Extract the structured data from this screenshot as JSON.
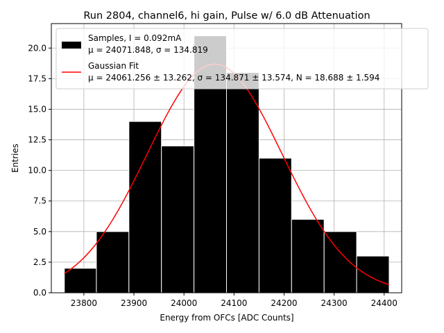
{
  "chart_data": {
    "type": "bar",
    "title": "Run 2804, channel6, hi gain, Pulse w/ 6.0 dB Attenuation",
    "xlabel": "Energy from OFCs [ADC Counts]",
    "ylabel": "Entries",
    "xlim": [
      23735,
      24435
    ],
    "ylim": [
      0,
      22
    ],
    "xticks": [
      23800,
      23900,
      24000,
      24100,
      24200,
      24300,
      24400
    ],
    "xtick_labels": [
      "23800",
      "23900",
      "24000",
      "24100",
      "24200",
      "24300",
      "24400"
    ],
    "yticks": [
      0,
      2.5,
      5,
      7.5,
      10,
      12.5,
      15,
      17.5,
      20
    ],
    "ytick_labels": [
      "0.0",
      "2.5",
      "5.0",
      "7.5",
      "10.0",
      "12.5",
      "15.0",
      "17.5",
      "20.0"
    ],
    "grid": true,
    "legend_position": "top-right",
    "histogram": {
      "name": "Samples, I = 0.092mA",
      "stats_label": "μ = 24071.848, σ = 134.819",
      "color": "#000000",
      "bin_edges": [
        23761,
        23825,
        23890,
        23955,
        24020,
        24085,
        24150,
        24215,
        24280,
        24345,
        24410
      ],
      "counts": [
        2,
        5,
        14,
        12,
        21,
        18,
        11,
        6,
        5,
        3
      ]
    },
    "fit": {
      "name": "Gaussian Fit",
      "stats_label": "μ = 24061.256 ± 13.262, σ = 134.871 ± 13.574, N = 18.688 ± 1.594",
      "color": "#ff0000",
      "mu": 24061.256,
      "sigma": 134.871,
      "amplitude": 18.688,
      "x_range": [
        23761,
        24410
      ]
    }
  }
}
